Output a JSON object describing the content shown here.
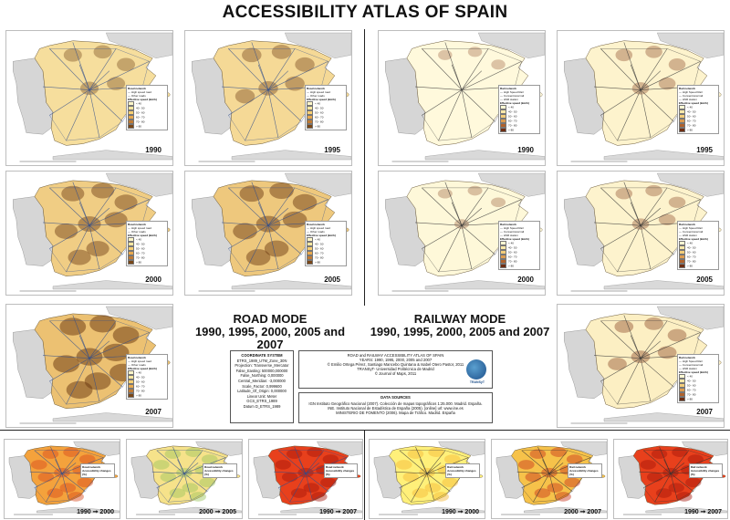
{
  "title": "ACCESSIBILITY ATLAS OF SPAIN",
  "road_mode": {
    "line1": "ROAD MODE",
    "line2": "1990, 1995, 2000, 2005 and 2007"
  },
  "rail_mode": {
    "line1": "RAILWAY MODE",
    "line2": "1990, 1995, 2000, 2005 and 2007"
  },
  "road_maps": [
    {
      "year": "1990",
      "level": 0.3
    },
    {
      "year": "1995",
      "level": 0.38
    },
    {
      "year": "2000",
      "level": 0.58
    },
    {
      "year": "2005",
      "level": 0.66
    },
    {
      "year": "2007",
      "level": 0.78
    }
  ],
  "rail_maps": [
    {
      "year": "1990",
      "level": 0.05
    },
    {
      "year": "1995",
      "level": 0.22
    },
    {
      "year": "2000",
      "level": 0.08
    },
    {
      "year": "2005",
      "level": 0.22
    },
    {
      "year": "2007",
      "level": 0.34
    }
  ],
  "road_legend": {
    "title": "Road network",
    "lines": [
      "High speed road",
      "Other roads"
    ],
    "scale_title": "Effective speed (km/h)",
    "classes": [
      "< 40",
      "40 - 50",
      "50 - 60",
      "60 - 70",
      "70 - 80",
      "> 80"
    ],
    "colors": [
      "#fff6c8",
      "#fde7a0",
      "#f8cf72",
      "#e9a94e",
      "#c07a33",
      "#7a4718"
    ]
  },
  "rail_legend": {
    "title": "Rail network",
    "lines": [
      "High Speed Rail",
      "Conventional rail",
      "HSR station"
    ],
    "scale_title": "Effective speed (km/h)",
    "classes": [
      "< 40",
      "40 - 50",
      "50 - 60",
      "60 - 70",
      "70 - 80",
      "> 80"
    ],
    "colors": [
      "#fff8d2",
      "#fbe9a9",
      "#f3cd7a",
      "#dd9c4f",
      "#b0622c",
      "#6e2d12"
    ]
  },
  "change_maps": {
    "road": [
      {
        "label_from": "1990",
        "label_to": "2000",
        "variant": "orange"
      },
      {
        "label_from": "2000",
        "label_to": "2005",
        "variant": "yellow-green"
      },
      {
        "label_from": "1990",
        "label_to": "2007",
        "variant": "red"
      }
    ],
    "rail": [
      {
        "label_from": "1990",
        "label_to": "2000",
        "variant": "yellow"
      },
      {
        "label_from": "2000",
        "label_to": "2007",
        "variant": "mixed"
      },
      {
        "label_from": "1990",
        "label_to": "2007",
        "variant": "red"
      }
    ],
    "arrow": "➞",
    "legend_title_road": "Road network",
    "legend_title_rail": "Rail network",
    "legend_sub": "Accessibility changes (%)"
  },
  "coordinate_box": {
    "heading": "COORDINATE SYSTEM",
    "lines": [
      "ETRS_1989_UTM_Zone_30N",
      "Projection: Transverse_Mercator",
      "False_Easting: 500000,000000",
      "False_Northing: 0,000000",
      "Central_Meridian: -3,000000",
      "Scale_Factor: 0,999600",
      "Latitude_Of_Origin: 0,000000",
      "Linear Unit: Meter",
      "GCS_ETRS_1989",
      "Datum D_ETRS_1989"
    ]
  },
  "credits_box": {
    "lines": [
      "ROAD and RAILWAY ACCESSIBILITY ATLAS OF SPAIN",
      "YEARS: 1990, 1995, 2000, 2005 and 2007",
      "© Emilio Ortega Pérez, Santiago Mancebo Quintana & Isabel Otero Pastor, 2011",
      "TRANSyT- Universidad Politécnica de Madrid",
      "© Journal of Maps, 2011"
    ],
    "logo_text": "TRANSyT"
  },
  "sources_box": {
    "heading": "DATA SOURCES",
    "lines": [
      "IGN Instituto Geográfico Nacional (2007). Colección de mapas topográficos 1:25.000. Madrid. España.",
      "INE. Instituto Nacional de Estadística de España (2005). [online] url: www.ine.es",
      "MINISTERIO DE FOMENTO (2006). Mapa de Tráfico. Madrid. España"
    ]
  }
}
